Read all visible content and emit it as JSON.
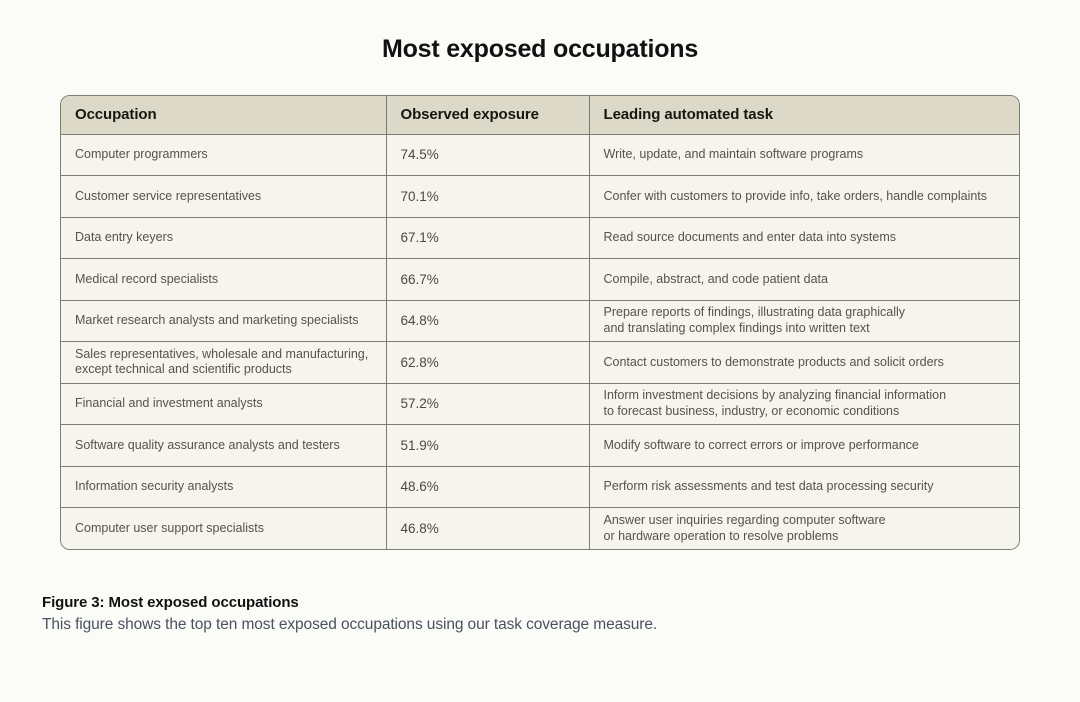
{
  "page": {
    "title": "Most exposed occupations"
  },
  "table": {
    "columns": [
      "Occupation",
      "Observed exposure",
      "Leading automated task"
    ],
    "rows": [
      {
        "occupation": "Computer programmers",
        "exposure": "74.5%",
        "task": "Write, update, and maintain software programs"
      },
      {
        "occupation": "Customer service representatives",
        "exposure": "70.1%",
        "task": "Confer with customers to provide info, take orders, handle complaints"
      },
      {
        "occupation": "Data entry keyers",
        "exposure": "67.1%",
        "task": "Read source documents and enter data into systems"
      },
      {
        "occupation": "Medical record specialists",
        "exposure": "66.7%",
        "task": "Compile, abstract, and code patient data"
      },
      {
        "occupation": "Market research analysts and marketing specialists",
        "exposure": "64.8%",
        "task": "Prepare reports of findings, illustrating data graphically\nand translating complex findings into written text"
      },
      {
        "occupation": "Sales representatives, wholesale and manufacturing,\nexcept technical and scientific products",
        "exposure": "62.8%",
        "task": "Contact customers to demonstrate products and solicit orders"
      },
      {
        "occupation": "Financial and investment analysts",
        "exposure": "57.2%",
        "task": "Inform investment decisions by analyzing financial information\nto forecast business, industry, or economic conditions"
      },
      {
        "occupation": "Software quality assurance analysts and testers",
        "exposure": "51.9%",
        "task": "Modify software to correct errors or improve performance"
      },
      {
        "occupation": "Information security analysts",
        "exposure": "48.6%",
        "task": "Perform risk assessments and test data processing security"
      },
      {
        "occupation": "Computer user support specialists",
        "exposure": "46.8%",
        "task": "Answer user inquiries regarding computer software\nor hardware operation to resolve problems"
      }
    ]
  },
  "caption": {
    "heading": "Figure 3: Most exposed occupations",
    "body": "This figure shows the top ten most exposed occupations using our task coverage measure."
  },
  "colors": {
    "page_bg": "#fbfbf8",
    "header_bg": "#dcd9c9",
    "row_bg": "#f5f4ed",
    "border": "#7d7d70",
    "header_text": "#17170f",
    "cell_text": "#54544a",
    "title_text": "#111111",
    "caption_body_text": "#49525f"
  },
  "chart_data": {
    "type": "table",
    "title": "Most exposed occupations",
    "columns": [
      "Occupation",
      "Observed exposure",
      "Leading automated task"
    ],
    "categories": [
      "Computer programmers",
      "Customer service representatives",
      "Data entry keyers",
      "Medical record specialists",
      "Market research analysts and marketing specialists",
      "Sales representatives, wholesale and manufacturing, except technical and scientific products",
      "Financial and investment analysts",
      "Software quality assurance analysts and testers",
      "Information security analysts",
      "Computer user support specialists"
    ],
    "values": [
      74.5,
      70.1,
      67.1,
      66.7,
      64.8,
      62.8,
      57.2,
      51.9,
      48.6,
      46.8
    ],
    "value_unit": "%",
    "leading_automated_tasks": [
      "Write, update, and maintain software programs",
      "Confer with customers to provide info, take orders, handle complaints",
      "Read source documents and enter data into systems",
      "Compile, abstract, and code patient data",
      "Prepare reports of findings, illustrating data graphically and translating complex findings into written text",
      "Contact customers to demonstrate products and solicit orders",
      "Inform investment decisions by analyzing financial information to forecast business, industry, or economic conditions",
      "Modify software to correct errors or improve performance",
      "Perform risk assessments and test data processing security",
      "Answer user inquiries regarding computer software or hardware operation to resolve problems"
    ]
  }
}
